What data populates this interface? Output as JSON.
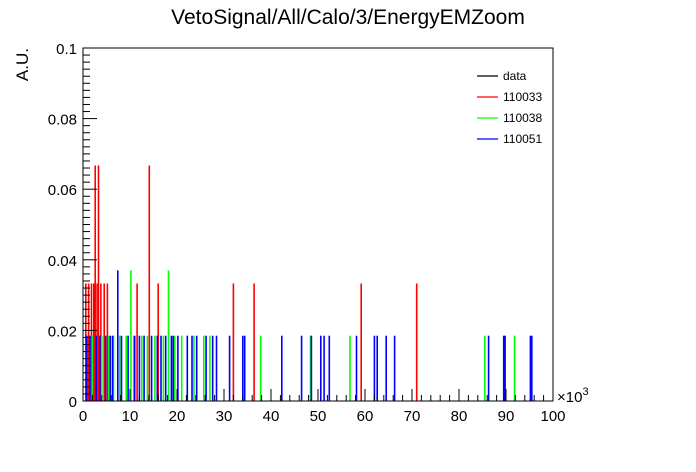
{
  "chart_data": {
    "type": "bar",
    "title": "VetoSignal/All/Calo/3/EnergyEMZoom",
    "xlabel": "",
    "ylabel": "A.U.",
    "x_multiplier_label": "×10",
    "x_multiplier_exp": "3",
    "xlim": [
      0,
      100
    ],
    "ylim": [
      0,
      0.1
    ],
    "xticks": [
      "0",
      "10",
      "20",
      "30",
      "40",
      "50",
      "60",
      "70",
      "80",
      "90",
      "100"
    ],
    "yticks": [
      "0",
      "0.02",
      "0.04",
      "0.06",
      "0.08",
      "0.1"
    ],
    "legend_position": "top-right",
    "grid": false,
    "series": [
      {
        "name": "data",
        "color": "#000000",
        "points": []
      },
      {
        "name": "110033",
        "color": "#ff0000",
        "points": [
          [
            0.6,
            0.0333
          ],
          [
            1.2,
            0.0333
          ],
          [
            1.8,
            0.0333
          ],
          [
            2.3,
            0.0333
          ],
          [
            2.6,
            0.0667
          ],
          [
            3.0,
            0.0333
          ],
          [
            3.3,
            0.0667
          ],
          [
            3.8,
            0.0333
          ],
          [
            4.5,
            0.0333
          ],
          [
            5.2,
            0.0333
          ],
          [
            11.5,
            0.0333
          ],
          [
            14.1,
            0.0667
          ],
          [
            16.0,
            0.0333
          ],
          [
            32.0,
            0.0333
          ],
          [
            36.4,
            0.0333
          ],
          [
            59.2,
            0.0333
          ],
          [
            71.0,
            0.0333
          ]
        ]
      },
      {
        "name": "110038",
        "color": "#00ff00",
        "points": [
          [
            0.9,
            0.0185
          ],
          [
            2.0,
            0.0185
          ],
          [
            4.0,
            0.0185
          ],
          [
            5.5,
            0.0185
          ],
          [
            6.5,
            0.0185
          ],
          [
            7.8,
            0.0185
          ],
          [
            9.2,
            0.0185
          ],
          [
            10.2,
            0.037
          ],
          [
            10.8,
            0.0185
          ],
          [
            12.5,
            0.0185
          ],
          [
            13.7,
            0.0185
          ],
          [
            15.3,
            0.0185
          ],
          [
            17.1,
            0.0185
          ],
          [
            18.2,
            0.037
          ],
          [
            19.5,
            0.0185
          ],
          [
            21.0,
            0.0185
          ],
          [
            23.6,
            0.0185
          ],
          [
            25.7,
            0.0185
          ],
          [
            27.0,
            0.0185
          ],
          [
            37.8,
            0.0185
          ],
          [
            48.4,
            0.0185
          ],
          [
            56.8,
            0.0185
          ],
          [
            85.5,
            0.0185
          ],
          [
            91.8,
            0.0185
          ]
        ]
      },
      {
        "name": "110051",
        "color": "#0000ff",
        "points": [
          [
            0.8,
            0.0185
          ],
          [
            1.5,
            0.0185
          ],
          [
            2.8,
            0.0185
          ],
          [
            3.6,
            0.0185
          ],
          [
            4.8,
            0.0185
          ],
          [
            5.8,
            0.0185
          ],
          [
            6.3,
            0.0185
          ],
          [
            7.4,
            0.037
          ],
          [
            8.2,
            0.0185
          ],
          [
            9.6,
            0.0185
          ],
          [
            11.0,
            0.0185
          ],
          [
            12.0,
            0.0185
          ],
          [
            13.0,
            0.0185
          ],
          [
            14.6,
            0.0185
          ],
          [
            15.8,
            0.0185
          ],
          [
            16.6,
            0.0185
          ],
          [
            17.6,
            0.0185
          ],
          [
            18.8,
            0.0185
          ],
          [
            19.2,
            0.0185
          ],
          [
            20.2,
            0.0185
          ],
          [
            22.2,
            0.0185
          ],
          [
            23.2,
            0.0185
          ],
          [
            24.2,
            0.0185
          ],
          [
            26.2,
            0.0185
          ],
          [
            27.6,
            0.0185
          ],
          [
            28.4,
            0.0185
          ],
          [
            31.2,
            0.0185
          ],
          [
            34.0,
            0.0185
          ],
          [
            34.4,
            0.0185
          ],
          [
            42.3,
            0.0185
          ],
          [
            46.5,
            0.0185
          ],
          [
            48.6,
            0.0185
          ],
          [
            50.6,
            0.0185
          ],
          [
            51.3,
            0.0185
          ],
          [
            52.4,
            0.0185
          ],
          [
            58.2,
            0.0185
          ],
          [
            62.0,
            0.0185
          ],
          [
            62.6,
            0.0185
          ],
          [
            64.5,
            0.0185
          ],
          [
            66.3,
            0.0185
          ],
          [
            86.3,
            0.0185
          ],
          [
            89.5,
            0.0185
          ],
          [
            89.8,
            0.0185
          ],
          [
            95.2,
            0.0185
          ],
          [
            95.5,
            0.0185
          ]
        ]
      }
    ]
  }
}
